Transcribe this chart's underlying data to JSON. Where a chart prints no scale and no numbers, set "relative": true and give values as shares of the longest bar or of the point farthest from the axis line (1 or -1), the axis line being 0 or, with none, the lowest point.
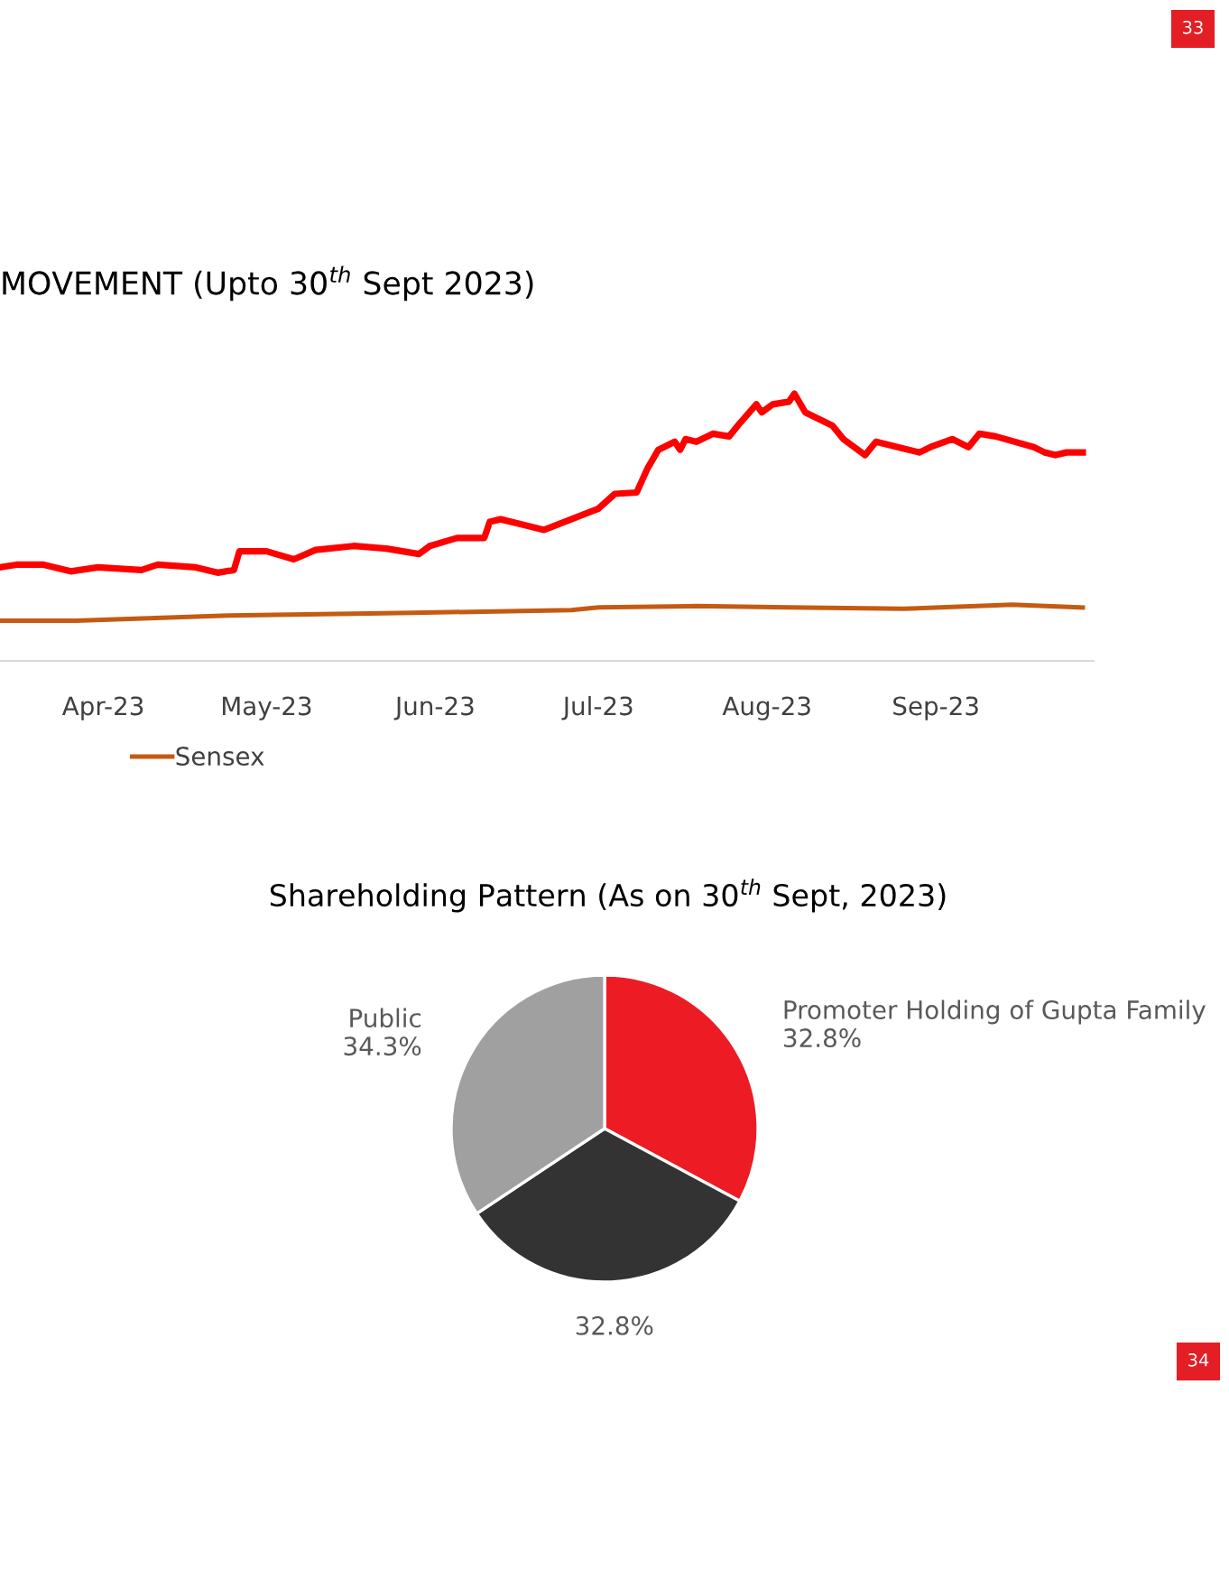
{
  "chart_data": [
    {
      "type": "line",
      "title": "MOVEMENT (Upto 30$^{th}$ Sept 2023)",
      "relative": true,
      "legend": "bottom",
      "grid": false,
      "xlim": [
        "2023-03-13",
        "2023-09-30"
      ],
      "xticks": [
        {
          "value": "2023-04-01",
          "label": "Apr-23"
        },
        {
          "value": "2023-05-01",
          "label": "May-23"
        },
        {
          "value": "2023-06-01",
          "label": "Jun-23"
        },
        {
          "value": "2023-07-01",
          "label": "Jul-23"
        },
        {
          "value": "2023-08-01",
          "label": "Aug-23"
        },
        {
          "value": "2023-09-01",
          "label": "Sep-23"
        }
      ],
      "series": [
        {
          "color": "#ff0000",
          "x": [
            "2023-03-13",
            "2023-03-16",
            "2023-03-21",
            "2023-03-26",
            "2023-03-31",
            "2023-04-08",
            "2023-04-11",
            "2023-04-18",
            "2023-04-22",
            "2023-04-25",
            "2023-04-26",
            "2023-05-01",
            "2023-05-06",
            "2023-05-10",
            "2023-05-17",
            "2023-05-23",
            "2023-05-29",
            "2023-05-31",
            "2023-06-05",
            "2023-06-10",
            "2023-06-11",
            "2023-06-13",
            "2023-06-17",
            "2023-06-21",
            "2023-06-26",
            "2023-07-01",
            "2023-07-04",
            "2023-07-08",
            "2023-07-10",
            "2023-07-12",
            "2023-07-15",
            "2023-07-16",
            "2023-07-17",
            "2023-07-19",
            "2023-07-22",
            "2023-07-25",
            "2023-07-27",
            "2023-07-30",
            "2023-07-31",
            "2023-08-02",
            "2023-08-05",
            "2023-08-06",
            "2023-08-08",
            "2023-08-13",
            "2023-08-15",
            "2023-08-19",
            "2023-08-21",
            "2023-08-26",
            "2023-08-29",
            "2023-08-31",
            "2023-09-04",
            "2023-09-07",
            "2023-09-09",
            "2023-09-12",
            "2023-09-19",
            "2023-09-21",
            "2023-09-23",
            "2023-09-25",
            "2023-09-28"
          ],
          "values": [
            0.35,
            0.36,
            0.36,
            0.335,
            0.35,
            0.34,
            0.36,
            0.35,
            0.33,
            0.34,
            0.41,
            0.41,
            0.38,
            0.415,
            0.43,
            0.42,
            0.4,
            0.43,
            0.46,
            0.46,
            0.52,
            0.53,
            0.51,
            0.49,
            0.53,
            0.57,
            0.625,
            0.63,
            0.72,
            0.79,
            0.82,
            0.79,
            0.83,
            0.82,
            0.85,
            0.84,
            0.89,
            0.96,
            0.93,
            0.96,
            0.97,
            1.0,
            0.93,
            0.88,
            0.83,
            0.77,
            0.82,
            0.795,
            0.78,
            0.8,
            0.83,
            0.8,
            0.85,
            0.84,
            0.8,
            0.78,
            0.77,
            0.78,
            0.78
          ]
        },
        {
          "name": "Sensex",
          "color": "#c55a11",
          "x": [
            "2023-03-13",
            "2023-03-27",
            "2023-04-24",
            "2023-05-28",
            "2023-06-26",
            "2023-07-01",
            "2023-07-19",
            "2023-08-05",
            "2023-08-26",
            "2023-09-15",
            "2023-09-28"
          ],
          "values": [
            0.15,
            0.15,
            0.17,
            0.18,
            0.19,
            0.2,
            0.205,
            0.2,
            0.195,
            0.21,
            0.2
          ]
        }
      ],
      "annotations": [
        "33"
      ]
    },
    {
      "type": "pie",
      "title": "Shareholding Pattern (As on 30$^{th}$ Sept, 2023)",
      "value_labels": [
        "32.8%",
        "32.8%",
        "34.3%"
      ],
      "categories": [
        "Promoter Holding of Gupta Family",
        null,
        "Public"
      ],
      "values": [
        32.8,
        32.8,
        34.3
      ],
      "colors": [
        "#ed1c24",
        "#333333",
        "#a0a0a0"
      ],
      "annotations": [
        "34"
      ]
    }
  ]
}
